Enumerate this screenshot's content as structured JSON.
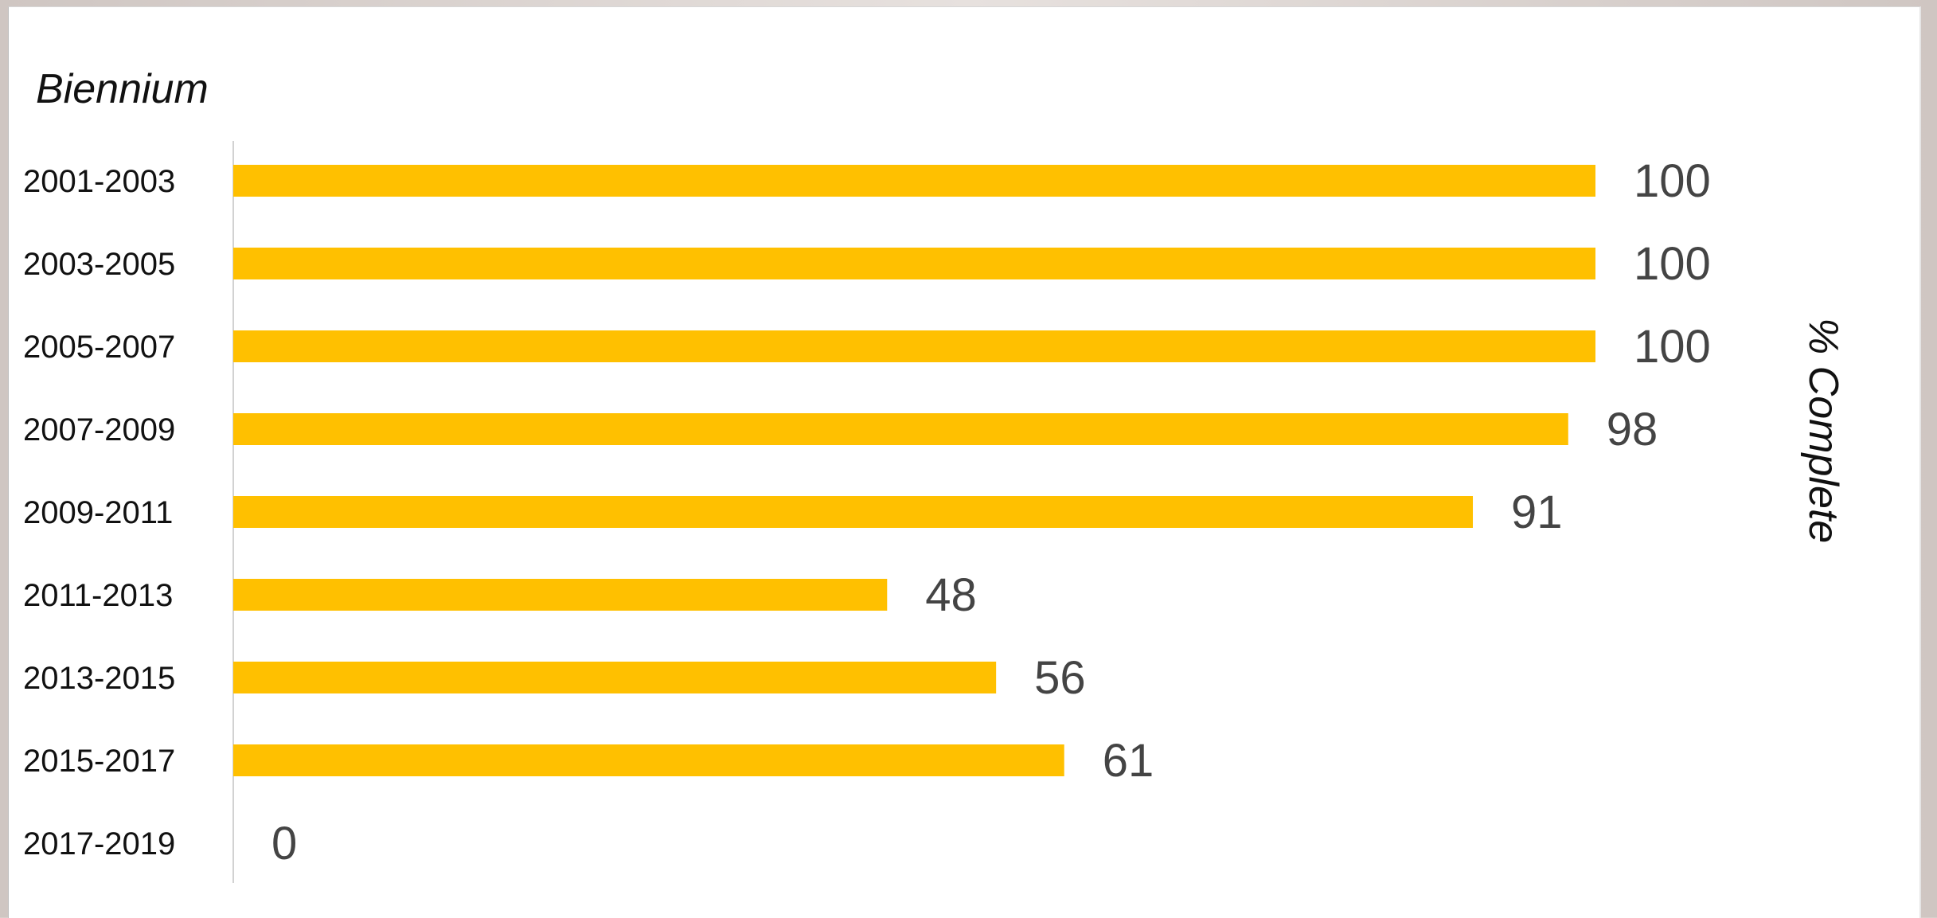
{
  "chart_data": {
    "type": "bar",
    "orientation": "horizontal",
    "categories": [
      "2001-2003",
      "2003-2005",
      "2005-2007",
      "2007-2009",
      "2009-2011",
      "2011-2013",
      "2013-2015",
      "2015-2017",
      "2017-2019"
    ],
    "values": [
      100,
      100,
      100,
      98,
      91,
      48,
      56,
      61,
      0
    ],
    "xlabel": "% Complete",
    "ylabel": "Biennium",
    "xlim": [
      0,
      100
    ],
    "grid": false,
    "legend": "none",
    "bar_color": "#ffc000"
  }
}
